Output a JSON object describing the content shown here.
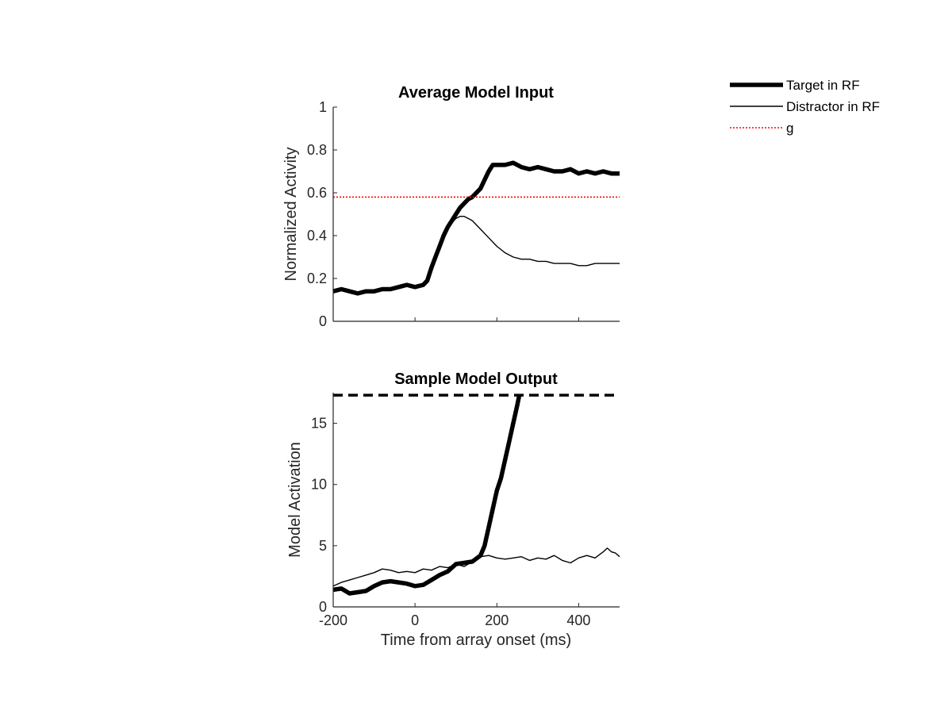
{
  "chart_data": [
    {
      "type": "line",
      "title": "Average Model Input",
      "xlabel": "",
      "ylabel": "Normalized Activity",
      "xlim": [
        -200,
        500
      ],
      "ylim": [
        0,
        1
      ],
      "xticks": [
        -200,
        0,
        200,
        400
      ],
      "xtick_labels_shown": false,
      "yticks": [
        0,
        0.2,
        0.4,
        0.6,
        0.8,
        1
      ],
      "ytick_labels": [
        "0",
        "0.2",
        "0.4",
        "0.6",
        "0.8",
        "1"
      ],
      "grid": false,
      "series": [
        {
          "name": "Target in RF",
          "color": "#000000",
          "style": "thick",
          "x": [
            -200,
            -180,
            -160,
            -140,
            -120,
            -100,
            -80,
            -60,
            -40,
            -20,
            0,
            20,
            30,
            40,
            50,
            60,
            70,
            80,
            90,
            100,
            110,
            120,
            130,
            140,
            150,
            160,
            170,
            180,
            190,
            200,
            220,
            240,
            260,
            280,
            300,
            320,
            340,
            360,
            380,
            400,
            420,
            440,
            460,
            480,
            500
          ],
          "y": [
            0.14,
            0.15,
            0.14,
            0.13,
            0.14,
            0.14,
            0.15,
            0.15,
            0.16,
            0.17,
            0.16,
            0.17,
            0.19,
            0.25,
            0.3,
            0.35,
            0.4,
            0.44,
            0.47,
            0.5,
            0.53,
            0.55,
            0.57,
            0.58,
            0.6,
            0.62,
            0.66,
            0.7,
            0.73,
            0.73,
            0.73,
            0.74,
            0.72,
            0.71,
            0.72,
            0.71,
            0.7,
            0.7,
            0.71,
            0.69,
            0.7,
            0.69,
            0.7,
            0.69,
            0.69
          ]
        },
        {
          "name": "Distractor in RF",
          "color": "#000000",
          "style": "thin",
          "x": [
            -200,
            -180,
            -160,
            -140,
            -120,
            -100,
            -80,
            -60,
            -40,
            -20,
            0,
            20,
            30,
            40,
            50,
            60,
            70,
            80,
            90,
            100,
            110,
            120,
            130,
            140,
            150,
            160,
            180,
            200,
            220,
            240,
            260,
            280,
            300,
            320,
            340,
            360,
            380,
            400,
            420,
            440,
            460,
            480,
            500
          ],
          "y": [
            0.14,
            0.15,
            0.14,
            0.13,
            0.14,
            0.14,
            0.15,
            0.15,
            0.16,
            0.17,
            0.16,
            0.17,
            0.19,
            0.25,
            0.3,
            0.35,
            0.4,
            0.44,
            0.46,
            0.48,
            0.49,
            0.49,
            0.48,
            0.47,
            0.45,
            0.43,
            0.39,
            0.35,
            0.32,
            0.3,
            0.29,
            0.29,
            0.28,
            0.28,
            0.27,
            0.27,
            0.27,
            0.26,
            0.26,
            0.27,
            0.27,
            0.27,
            0.27
          ]
        },
        {
          "name": "g",
          "color": "#ff0000",
          "style": "dotted",
          "x": [
            -200,
            500
          ],
          "y": [
            0.58,
            0.58
          ]
        }
      ]
    },
    {
      "type": "line",
      "title": "Sample Model Output",
      "xlabel": "Time from array onset (ms)",
      "ylabel": "Model Activation",
      "xlim": [
        -200,
        500
      ],
      "ylim": [
        0,
        17.5
      ],
      "xticks": [
        -200,
        0,
        200,
        400
      ],
      "xtick_labels": [
        "-200",
        "0",
        "200",
        "400"
      ],
      "yticks": [
        0,
        5,
        10,
        15
      ],
      "ytick_labels": [
        "0",
        "5",
        "10",
        "15"
      ],
      "grid": false,
      "series": [
        {
          "name": "Target in RF",
          "color": "#000000",
          "style": "thick",
          "x": [
            -200,
            -180,
            -160,
            -140,
            -120,
            -100,
            -80,
            -60,
            -40,
            -20,
            0,
            20,
            40,
            60,
            80,
            100,
            120,
            140,
            160,
            170,
            180,
            190,
            200,
            210,
            220,
            230,
            240,
            250,
            255
          ],
          "y": [
            1.4,
            1.5,
            1.1,
            1.2,
            1.3,
            1.7,
            2.0,
            2.1,
            2.0,
            1.9,
            1.7,
            1.8,
            2.2,
            2.6,
            2.9,
            3.5,
            3.6,
            3.7,
            4.2,
            5.0,
            6.5,
            8.0,
            9.5,
            10.5,
            12.0,
            13.5,
            15.0,
            16.5,
            17.3
          ]
        },
        {
          "name": "Distractor in RF",
          "color": "#000000",
          "style": "thin",
          "x": [
            -200,
            -180,
            -160,
            -140,
            -120,
            -100,
            -80,
            -60,
            -40,
            -20,
            0,
            20,
            40,
            60,
            80,
            100,
            120,
            140,
            160,
            180,
            200,
            220,
            240,
            260,
            280,
            300,
            320,
            340,
            360,
            380,
            400,
            420,
            440,
            460,
            470,
            480,
            490,
            500
          ],
          "y": [
            1.7,
            2.0,
            2.2,
            2.4,
            2.6,
            2.8,
            3.1,
            3.0,
            2.8,
            2.9,
            2.8,
            3.1,
            3.0,
            3.3,
            3.2,
            3.5,
            3.3,
            3.7,
            4.1,
            4.2,
            4.0,
            3.9,
            4.0,
            4.1,
            3.8,
            4.0,
            3.9,
            4.2,
            3.8,
            3.6,
            4.0,
            4.2,
            4.0,
            4.5,
            4.8,
            4.5,
            4.4,
            4.1
          ]
        },
        {
          "name": "",
          "color": "#000000",
          "style": "dashed",
          "x": [
            -200,
            500
          ],
          "y": [
            17.3,
            17.3
          ]
        }
      ]
    }
  ],
  "legend": {
    "placement": "top-right, outside plot area",
    "entries": [
      {
        "label": "Target in RF",
        "color": "#000000",
        "style": "thick"
      },
      {
        "label": "Distractor in RF",
        "color": "#000000",
        "style": "thin"
      },
      {
        "label": "g",
        "color": "#ff0000",
        "style": "dotted"
      }
    ]
  }
}
